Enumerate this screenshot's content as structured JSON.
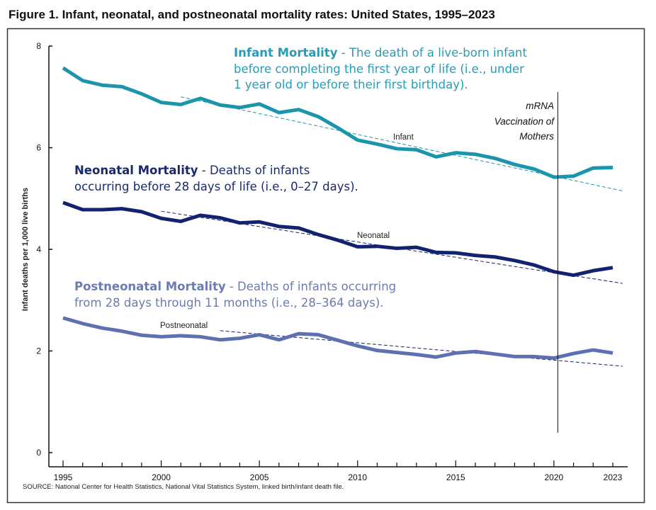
{
  "figure_title": "Figure 1. Infant, neonatal, and postneonatal mortality rates: United States, 1995–2023",
  "source": "SOURCE: National Center for Health Statistics, National Vital Statistics System, linked birth/infant death file.",
  "annotations": {
    "infant": {
      "title": "Infant Mortality",
      "text": [
        " -  The death of a live-born infant",
        "before completing the first year of life (i.e., under",
        "1 year old or before their first birthday)."
      ]
    },
    "neonatal": {
      "title": "Neonatal Mortality",
      "text": [
        " -  Deaths of infants",
        "occurring before 28 days of life (i.e., 0–27 days)."
      ]
    },
    "postneonatal": {
      "title": "Postneonatal Mortality",
      "text": [
        " -  Deaths of infants occurring",
        "from 28 days through 11 months (i.e., 28–364 days)."
      ]
    },
    "vaccination": {
      "lines": [
        "mRNA",
        "Vaccination of",
        "Mothers"
      ],
      "year": 2020.2
    }
  },
  "chart_data": {
    "type": "line",
    "title": "Figure 1. Infant, neonatal, and postneonatal mortality rates: United States, 1995–2023",
    "xlabel": "",
    "ylabel": "Infant deaths per 1,000 live births",
    "xlim": [
      1995,
      2023
    ],
    "ylim": [
      0,
      8
    ],
    "x_ticks": [
      "1995",
      "2000",
      "2005",
      "2010",
      "2015",
      "2020",
      "2023"
    ],
    "y_ticks": [
      "0",
      "2",
      "4",
      "6",
      "8"
    ],
    "grid": false,
    "x": [
      1995,
      1996,
      1997,
      1998,
      1999,
      2000,
      2001,
      2002,
      2003,
      2004,
      2005,
      2006,
      2007,
      2008,
      2009,
      2010,
      2011,
      2012,
      2013,
      2014,
      2015,
      2016,
      2017,
      2018,
      2019,
      2020,
      2021,
      2022,
      2023
    ],
    "series": [
      {
        "name": "Infant",
        "color": "#1b95ac",
        "values": [
          7.57,
          7.32,
          7.23,
          7.2,
          7.06,
          6.89,
          6.85,
          6.97,
          6.84,
          6.79,
          6.86,
          6.69,
          6.75,
          6.61,
          6.39,
          6.15,
          6.07,
          5.98,
          5.96,
          5.82,
          5.9,
          5.87,
          5.79,
          5.67,
          5.58,
          5.42,
          5.44,
          5.6,
          5.61
        ],
        "trend": {
          "x": [
            2001,
            2023.5
          ],
          "y": [
            7.0,
            5.15
          ],
          "color": "#1b95ac"
        }
      },
      {
        "name": "Neonatal",
        "color": "#13226e",
        "values": [
          4.92,
          4.78,
          4.78,
          4.8,
          4.74,
          4.61,
          4.55,
          4.67,
          4.62,
          4.52,
          4.54,
          4.45,
          4.42,
          4.29,
          4.18,
          4.05,
          4.06,
          4.02,
          4.04,
          3.94,
          3.93,
          3.88,
          3.85,
          3.78,
          3.69,
          3.56,
          3.49,
          3.58,
          3.64
        ],
        "trend": {
          "x": [
            2000,
            2023.5
          ],
          "y": [
            4.75,
            3.33
          ],
          "color": "#13226e"
        }
      },
      {
        "name": "Postneonatal",
        "color": "#5f70b0",
        "values": [
          2.65,
          2.54,
          2.45,
          2.39,
          2.31,
          2.28,
          2.3,
          2.28,
          2.22,
          2.25,
          2.32,
          2.22,
          2.34,
          2.32,
          2.21,
          2.1,
          2.01,
          1.97,
          1.93,
          1.88,
          1.96,
          1.99,
          1.94,
          1.89,
          1.89,
          1.86,
          1.95,
          2.02,
          1.96
        ],
        "trend": {
          "x": [
            2003,
            2023.5
          ],
          "y": [
            2.4,
            1.7
          ],
          "color": "#13226e"
        }
      }
    ]
  },
  "colors": {
    "infant_text": "#2a9bb5",
    "neonatal_text": "#1a2a6c",
    "postneonatal_text": "#6b7bb3"
  }
}
